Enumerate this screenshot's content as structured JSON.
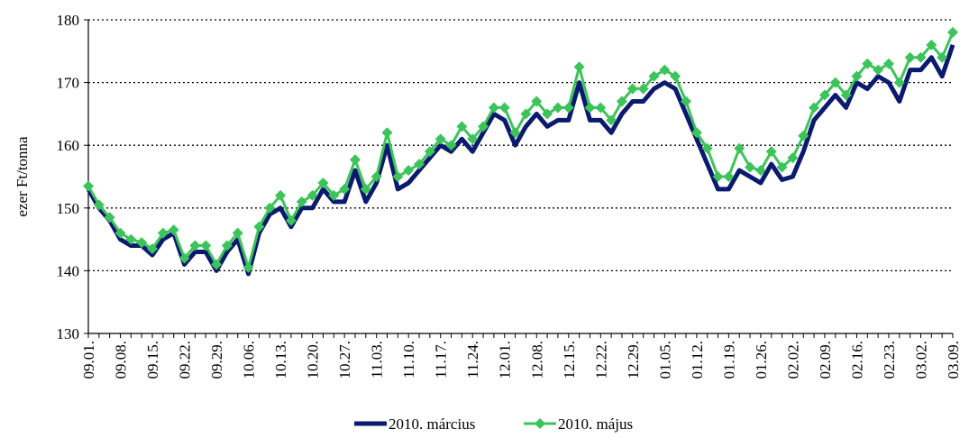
{
  "chart_data": {
    "type": "line",
    "y_label": "ezer Ft/tonna",
    "categories": [
      "09.01.",
      null,
      null,
      "09.08.",
      null,
      null,
      "09.15.",
      null,
      null,
      "09.22.",
      null,
      null,
      "09.29.",
      null,
      null,
      "10.06.",
      null,
      null,
      "10.13.",
      null,
      null,
      "10.20.",
      null,
      null,
      "10.27.",
      null,
      null,
      "11.03.",
      null,
      null,
      "11.10.",
      null,
      null,
      "11.17.",
      null,
      null,
      "11.24.",
      null,
      null,
      "12.01.",
      null,
      null,
      "12.08.",
      null,
      null,
      "12.15.",
      null,
      null,
      "12.22.",
      null,
      null,
      "12.29.",
      null,
      null,
      "01.05.",
      null,
      null,
      "01.12.",
      null,
      null,
      "01.19.",
      null,
      null,
      "01.26.",
      null,
      null,
      "02.02.",
      null,
      null,
      "02.09.",
      null,
      null,
      "02.16.",
      null,
      null,
      "02.23.",
      null,
      null,
      "03.02.",
      null,
      null,
      "03.09."
    ],
    "series": [
      {
        "name": "2010. március",
        "color": "#0a1a6e",
        "values": [
          153,
          150,
          148,
          145,
          144,
          144,
          142.5,
          145,
          146,
          141,
          143,
          143,
          140,
          143,
          145,
          139.5,
          146,
          149,
          150,
          147,
          150,
          150,
          153,
          151,
          151,
          156,
          151,
          154,
          160,
          153,
          154,
          156,
          158,
          160,
          159,
          161,
          159,
          162,
          165,
          164,
          160,
          163,
          165,
          163,
          164,
          164,
          170,
          164,
          164,
          162,
          165,
          167,
          167,
          169,
          170,
          169,
          165,
          161,
          157,
          153,
          153,
          156,
          155,
          154,
          157,
          154.5,
          155,
          159,
          164,
          166,
          168,
          166,
          170,
          169,
          171,
          170,
          167,
          172,
          172,
          174,
          171,
          176
        ]
      },
      {
        "name": "2010. május",
        "color": "#3cc45a",
        "values": [
          153.5,
          150.5,
          148.5,
          146,
          145,
          144.5,
          143.5,
          146,
          146.5,
          142,
          144,
          144,
          141,
          144,
          146,
          140.5,
          147,
          150,
          152,
          148,
          151,
          152,
          154,
          152,
          153,
          157.7,
          153,
          155,
          162,
          155,
          156,
          157,
          159,
          161,
          160,
          163,
          161,
          163,
          166,
          166,
          162,
          165,
          167,
          165,
          166,
          166,
          172.5,
          166,
          166,
          164,
          167,
          169,
          169,
          171,
          172,
          171,
          167,
          162,
          159.5,
          155,
          155,
          159.5,
          156.5,
          156,
          159,
          156.5,
          158,
          161.5,
          166,
          168,
          170,
          168,
          171,
          173,
          172,
          173,
          170,
          174,
          174,
          176,
          174,
          178
        ]
      }
    ],
    "ylim": [
      130,
      180
    ],
    "yticks": [
      130,
      140,
      150,
      160,
      170,
      180
    ],
    "grid": true,
    "legend": "bottom"
  }
}
